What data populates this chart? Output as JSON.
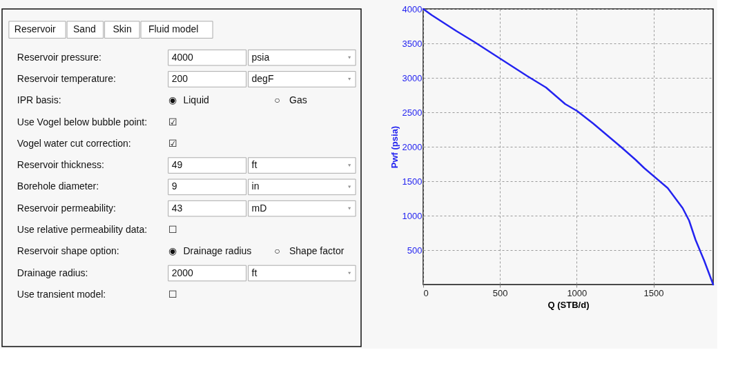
{
  "chart_data": [
    {
      "type": "other",
      "annotations": [
        "Reservoir",
        "Sand",
        "Skin",
        "Fluid model",
        "Reservoir pressure:",
        "4000",
        "psia",
        "Reservoir temperature:",
        "200",
        "degF",
        "IPR basis:",
        "◉",
        "Liquid",
        "○",
        "Gas",
        "Use Vogel below bubble point:",
        "☑",
        "Vogel water cut correction:",
        "☑",
        "Reservoir thickness:",
        "49",
        "ft",
        "Borehole diameter:",
        "9",
        "in",
        "Reservoir permeability:",
        "43",
        "mD",
        "Use relative permeability data:",
        "☐",
        "Reservoir shape option:",
        "◉",
        "Drainage radius",
        "○",
        "Shape factor",
        "Drainage radius:",
        "2000",
        "ft",
        "Use transient model:",
        "☐"
      ]
    },
    {
      "type": "line",
      "xlabel": "Q (STB/d)",
      "ylabel": "Pwf (psia)",
      "x": [
        0,
        56,
        216,
        334,
        501,
        675,
        800,
        925,
        1002,
        1106,
        1287,
        1384,
        1440,
        1593,
        1690,
        1732,
        1774,
        1830,
        1889
      ],
      "series": [
        {
          "color": "#2323f0",
          "values": [
            4000,
            3910,
            3680,
            3520,
            3280,
            3030,
            2860,
            2620,
            2520,
            2340,
            2000,
            1810,
            1690,
            1400,
            1110,
            930,
            650,
            350,
            0
          ]
        }
      ],
      "xlim": [
        0,
        1889
      ],
      "ylim": [
        0,
        4000
      ],
      "xticks": [
        0,
        500,
        1000,
        1500
      ],
      "yticks": [
        500,
        1000,
        1500,
        2000,
        2500,
        3000,
        3500,
        4000
      ],
      "grid": true
    }
  ]
}
